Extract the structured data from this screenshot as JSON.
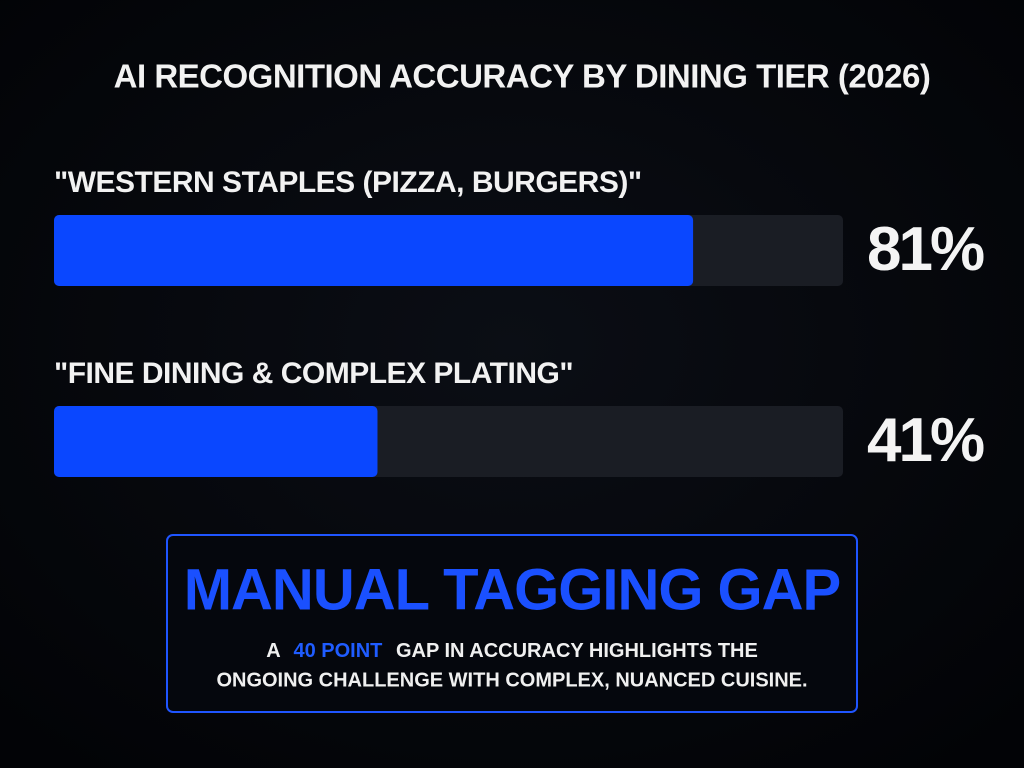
{
  "chart_data": {
    "type": "bar",
    "orientation": "horizontal",
    "title": "AI RECOGNITION ACCURACY BY DINING TIER (2026)",
    "categories": [
      "\"WESTERN STAPLES (PIZZA, BURGERS)\"",
      "\"FINE DINING & COMPLEX PLATING\""
    ],
    "values": [
      81,
      41
    ],
    "value_labels": [
      "81%",
      "41%"
    ],
    "xlim": [
      0,
      100
    ],
    "color": "#0a47ff"
  },
  "callout": {
    "title": "MANUAL TAGGING GAP",
    "body": [
      "A",
      "40 POINT",
      "GAP IN ACCURACY HIGHLIGHTS THE",
      "ONGOING CHALLENGE WITH COMPLEX, NUANCED CUISINE."
    ]
  }
}
